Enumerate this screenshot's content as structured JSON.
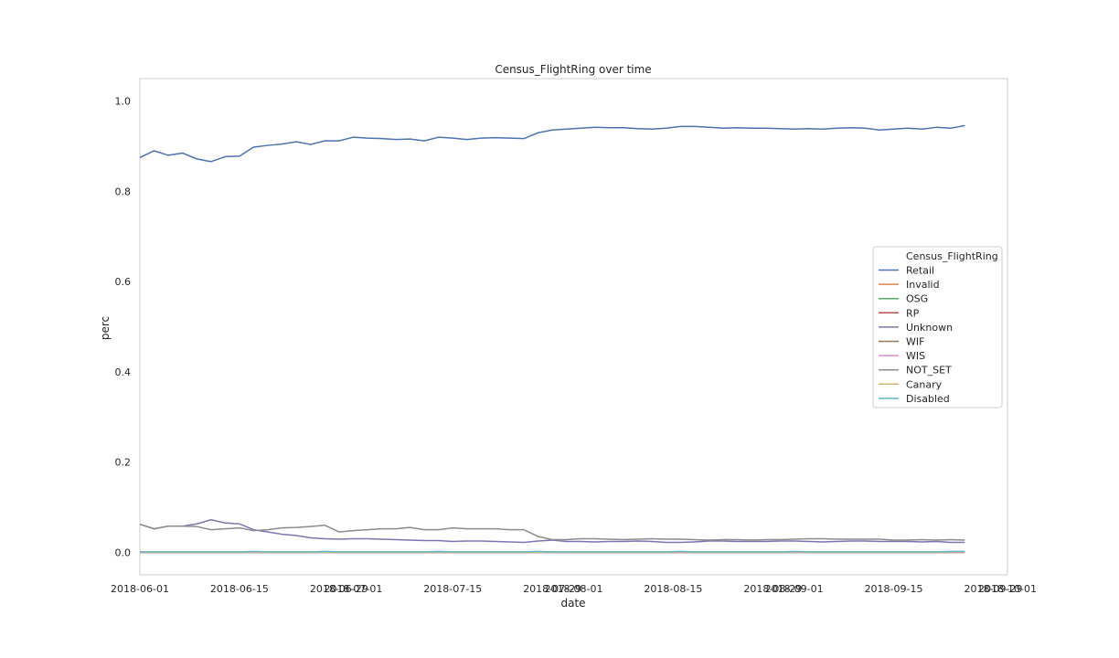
{
  "chart_data": {
    "type": "line",
    "title": "Census_FlightRing over time",
    "xlabel": "date",
    "ylabel": "perc",
    "xlim": [
      "2018-06-01",
      "2018-10-01"
    ],
    "ylim": [
      -0.05,
      1.05
    ],
    "grid": false,
    "legend": {
      "placement": "center-right",
      "title": "Census_FlightRing"
    },
    "x_tick_labels": [
      "2018-06-01",
      "2018-06-15",
      "2018-06-29",
      "2018-07-01",
      "2018-07-15",
      "2018-07-29",
      "2018-08-01",
      "2018-08-15",
      "2018-08-29",
      "2018-09-01",
      "2018-09-15",
      "2018-09-29",
      "2018-10-01"
    ],
    "y_ticks": [
      0.0,
      0.2,
      0.4,
      0.6,
      0.8,
      1.0
    ],
    "y_tick_labels": [
      "0.0",
      "0.2",
      "0.4",
      "0.6",
      "0.8",
      "1.0"
    ],
    "x": [
      "2018-06-01",
      "2018-06-03",
      "2018-06-05",
      "2018-06-07",
      "2018-06-09",
      "2018-06-11",
      "2018-06-13",
      "2018-06-15",
      "2018-06-17",
      "2018-06-19",
      "2018-06-21",
      "2018-06-23",
      "2018-06-25",
      "2018-06-27",
      "2018-06-29",
      "2018-07-01",
      "2018-07-03",
      "2018-07-05",
      "2018-07-07",
      "2018-07-09",
      "2018-07-11",
      "2018-07-13",
      "2018-07-15",
      "2018-07-17",
      "2018-07-19",
      "2018-07-21",
      "2018-07-23",
      "2018-07-25",
      "2018-07-27",
      "2018-07-29",
      "2018-07-31",
      "2018-08-02",
      "2018-08-04",
      "2018-08-06",
      "2018-08-08",
      "2018-08-10",
      "2018-08-12",
      "2018-08-14",
      "2018-08-16",
      "2018-08-18",
      "2018-08-20",
      "2018-08-22",
      "2018-08-24",
      "2018-08-26",
      "2018-08-28",
      "2018-08-30",
      "2018-09-01",
      "2018-09-03",
      "2018-09-05",
      "2018-09-07",
      "2018-09-09",
      "2018-09-11",
      "2018-09-13",
      "2018-09-15",
      "2018-09-17",
      "2018-09-19",
      "2018-09-21",
      "2018-09-23",
      "2018-09-25"
    ],
    "series": [
      {
        "name": "Retail",
        "color": "#4c72b0",
        "values": [
          0.875,
          0.89,
          0.88,
          0.885,
          0.872,
          0.866,
          0.877,
          0.878,
          0.898,
          0.902,
          0.905,
          0.91,
          0.904,
          0.912,
          0.912,
          0.92,
          0.918,
          0.917,
          0.915,
          0.916,
          0.912,
          0.92,
          0.918,
          0.915,
          0.918,
          0.919,
          0.918,
          0.917,
          0.93,
          0.936,
          0.938,
          0.94,
          0.942,
          0.941,
          0.941,
          0.939,
          0.938,
          0.94,
          0.944,
          0.944,
          0.942,
          0.94,
          0.941,
          0.94,
          0.94,
          0.939,
          0.938,
          0.939,
          0.938,
          0.94,
          0.941,
          0.94,
          0.936,
          0.938,
          0.94,
          0.938,
          0.942,
          0.94,
          0.946
        ]
      },
      {
        "name": "Invalid",
        "color": "#dd8452",
        "values": [
          0.0,
          0.0,
          0.0,
          0.0,
          0.0,
          0.0,
          0.0,
          0.0,
          0.0,
          0.0,
          0.0,
          0.0,
          0.0,
          0.0,
          0.0,
          0.0,
          0.0,
          0.0,
          0.0,
          0.0,
          0.0,
          0.0,
          0.0,
          0.0,
          0.0,
          0.0,
          0.0,
          0.0,
          0.0,
          0.0,
          0.0,
          0.0,
          0.0,
          0.0,
          0.0,
          0.0,
          0.0,
          0.0,
          0.0,
          0.0,
          0.0,
          0.0,
          0.0,
          0.0,
          0.0,
          0.0,
          0.0,
          0.0,
          0.0,
          0.0,
          0.0,
          0.0,
          0.0,
          0.0,
          0.0,
          0.0,
          0.0,
          0.0,
          0.0
        ]
      },
      {
        "name": "OSG",
        "color": "#55a868",
        "values": [
          0.0,
          0.0,
          0.0,
          0.0,
          0.0,
          0.0,
          0.0,
          0.0,
          0.0,
          0.0,
          0.0,
          0.0,
          0.0,
          0.0,
          0.0,
          0.0,
          0.0,
          0.0,
          0.0,
          0.0,
          0.0,
          0.0,
          0.0,
          0.0,
          0.0,
          0.0,
          0.0,
          0.0,
          0.0,
          0.0,
          0.0,
          0.0,
          0.0,
          0.0,
          0.0,
          0.0,
          0.0,
          0.0,
          0.0,
          0.0,
          0.0,
          0.0,
          0.0,
          0.0,
          0.0,
          0.0,
          0.0,
          0.0,
          0.0,
          0.0,
          0.0,
          0.0,
          0.0,
          0.0,
          0.0,
          0.0,
          0.0,
          0.0,
          0.0
        ]
      },
      {
        "name": "RP",
        "color": "#c44e52",
        "values": [
          0.0,
          0.0,
          0.0,
          0.0,
          0.0,
          0.0,
          0.0,
          0.0,
          0.0,
          0.0,
          0.0,
          0.0,
          0.0,
          0.0,
          0.0,
          0.0,
          0.0,
          0.0,
          0.0,
          0.0,
          0.0,
          0.0,
          0.0,
          0.0,
          0.0,
          0.0,
          0.0,
          0.0,
          0.0,
          0.0,
          0.0,
          0.0,
          0.0,
          0.0,
          0.0,
          0.0,
          0.0,
          0.0,
          0.0,
          0.0,
          0.0,
          0.0,
          0.0,
          0.0,
          0.0,
          0.0,
          0.0,
          0.0,
          0.0,
          0.0,
          0.0,
          0.0,
          0.0,
          0.0,
          0.0,
          0.0,
          0.0,
          0.0,
          0.0
        ]
      },
      {
        "name": "Unknown",
        "color": "#8172b3",
        "values": [
          0.062,
          0.052,
          0.058,
          0.058,
          0.063,
          0.072,
          0.065,
          0.063,
          0.05,
          0.045,
          0.04,
          0.037,
          0.032,
          0.03,
          0.029,
          0.03,
          0.03,
          0.029,
          0.028,
          0.027,
          0.026,
          0.026,
          0.024,
          0.025,
          0.025,
          0.024,
          0.023,
          0.022,
          0.025,
          0.027,
          0.024,
          0.024,
          0.023,
          0.024,
          0.024,
          0.025,
          0.024,
          0.022,
          0.022,
          0.023,
          0.025,
          0.025,
          0.024,
          0.024,
          0.024,
          0.025,
          0.025,
          0.024,
          0.023,
          0.024,
          0.025,
          0.025,
          0.024,
          0.024,
          0.024,
          0.023,
          0.024,
          0.022,
          0.022
        ]
      },
      {
        "name": "WIF",
        "color": "#937860",
        "values": [
          0.0,
          0.0,
          0.0,
          0.0,
          0.0,
          0.0,
          0.0,
          0.0,
          0.0,
          0.0,
          0.0,
          0.0,
          0.0,
          0.0,
          0.0,
          0.0,
          0.0,
          0.0,
          0.0,
          0.0,
          0.0,
          0.0,
          0.0,
          0.0,
          0.0,
          0.0,
          0.0,
          0.0,
          0.0,
          0.0,
          0.0,
          0.0,
          0.0,
          0.0,
          0.0,
          0.0,
          0.0,
          0.0,
          0.0,
          0.0,
          0.0,
          0.0,
          0.0,
          0.0,
          0.0,
          0.0,
          0.0,
          0.0,
          0.0,
          0.0,
          0.0,
          0.0,
          0.0,
          0.0,
          0.0,
          0.0,
          0.0,
          0.0,
          0.0
        ]
      },
      {
        "name": "WIS",
        "color": "#da8bc3",
        "values": [
          0.0,
          0.0,
          0.0,
          0.0,
          0.0,
          0.0,
          0.0,
          0.0,
          0.0,
          0.0,
          0.0,
          0.0,
          0.0,
          0.0,
          0.0,
          0.0,
          0.0,
          0.0,
          0.0,
          0.0,
          0.0,
          0.0,
          0.0,
          0.0,
          0.0,
          0.0,
          0.0,
          0.0,
          0.0,
          0.0,
          0.0,
          0.0,
          0.0,
          0.0,
          0.0,
          0.0,
          0.0,
          0.0,
          0.0,
          0.0,
          0.0,
          0.0,
          0.0,
          0.0,
          0.0,
          0.0,
          0.0,
          0.0,
          0.0,
          0.0,
          0.0,
          0.0,
          0.0,
          0.0,
          0.0,
          0.0,
          0.0,
          0.0,
          0.0
        ]
      },
      {
        "name": "NOT_SET",
        "color": "#8c8c8c",
        "values": [
          0.062,
          0.052,
          0.058,
          0.058,
          0.057,
          0.05,
          0.052,
          0.054,
          0.048,
          0.05,
          0.054,
          0.055,
          0.057,
          0.06,
          0.045,
          0.048,
          0.05,
          0.052,
          0.052,
          0.055,
          0.05,
          0.05,
          0.054,
          0.052,
          0.052,
          0.052,
          0.05,
          0.05,
          0.035,
          0.028,
          0.028,
          0.03,
          0.03,
          0.029,
          0.028,
          0.029,
          0.03,
          0.029,
          0.029,
          0.028,
          0.027,
          0.028,
          0.028,
          0.027,
          0.028,
          0.028,
          0.029,
          0.03,
          0.03,
          0.029,
          0.029,
          0.029,
          0.029,
          0.027,
          0.027,
          0.028,
          0.027,
          0.028,
          0.027
        ]
      },
      {
        "name": "Canary",
        "color": "#ccb974",
        "values": [
          0.0,
          0.0,
          0.0,
          0.0,
          0.0,
          0.0,
          0.0,
          0.0,
          0.001,
          0.0,
          0.0,
          0.0,
          0.0,
          0.0,
          0.0,
          0.0,
          0.0,
          0.0,
          0.0,
          0.0,
          0.0,
          0.001,
          0.0,
          0.0,
          0.0,
          0.0,
          0.0,
          0.0,
          0.0,
          0.001,
          0.0,
          0.0,
          0.0,
          0.0,
          0.0,
          0.0,
          0.0,
          0.0,
          0.001,
          0.0,
          0.0,
          0.0,
          0.0,
          0.0,
          0.0,
          0.0,
          0.001,
          0.0,
          0.0,
          0.0,
          0.0,
          0.0,
          0.0,
          0.0,
          0.0,
          0.0,
          0.0,
          0.001,
          0.001
        ]
      },
      {
        "name": "Disabled",
        "color": "#64b5cd",
        "values": [
          0.001,
          0.001,
          0.001,
          0.001,
          0.001,
          0.001,
          0.001,
          0.001,
          0.002,
          0.001,
          0.001,
          0.001,
          0.001,
          0.002,
          0.001,
          0.001,
          0.001,
          0.001,
          0.001,
          0.001,
          0.001,
          0.002,
          0.001,
          0.001,
          0.001,
          0.001,
          0.001,
          0.001,
          0.002,
          0.001,
          0.001,
          0.001,
          0.001,
          0.001,
          0.001,
          0.001,
          0.001,
          0.001,
          0.002,
          0.001,
          0.001,
          0.001,
          0.001,
          0.001,
          0.001,
          0.001,
          0.002,
          0.001,
          0.001,
          0.001,
          0.001,
          0.001,
          0.001,
          0.001,
          0.001,
          0.001,
          0.001,
          0.002,
          0.002
        ]
      }
    ]
  }
}
